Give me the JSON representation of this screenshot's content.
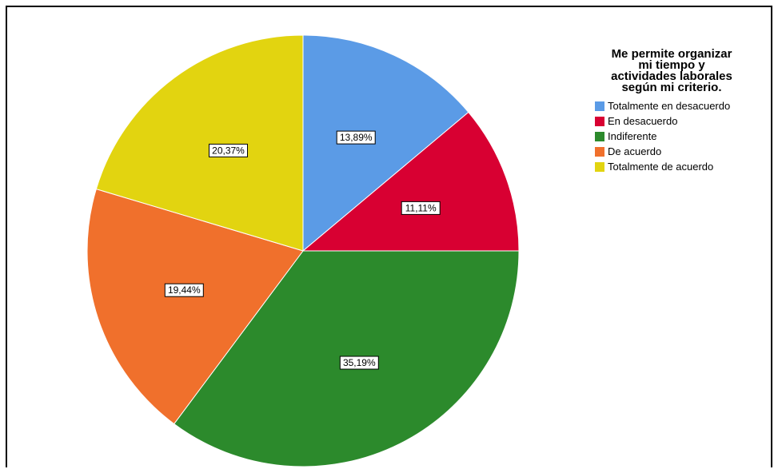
{
  "chart_data": {
    "type": "pie",
    "title": "Me permite organizar mi tiempo y actividades laborales según mi criterio.",
    "title_lines": [
      "Me permite organizar",
      "mi tiempo y",
      "actividades laborales",
      "según mi criterio."
    ],
    "legend_position": "top-right",
    "slices": [
      {
        "label": "Totalmente en desacuerdo",
        "value": 13.89,
        "value_label": "13,89%",
        "color": "#5b9be6"
      },
      {
        "label": "En desacuerdo",
        "value": 11.11,
        "value_label": "11,11%",
        "color": "#d80032"
      },
      {
        "label": "Indiferente",
        "value": 35.19,
        "value_label": "35,19%",
        "color": "#2c8a2c"
      },
      {
        "label": "De acuerdo",
        "value": 19.44,
        "value_label": "19,44%",
        "color": "#f0702c"
      },
      {
        "label": "Totalmente de acuerdo",
        "value": 20.37,
        "value_label": "20,37%",
        "color": "#e2d410"
      }
    ]
  }
}
